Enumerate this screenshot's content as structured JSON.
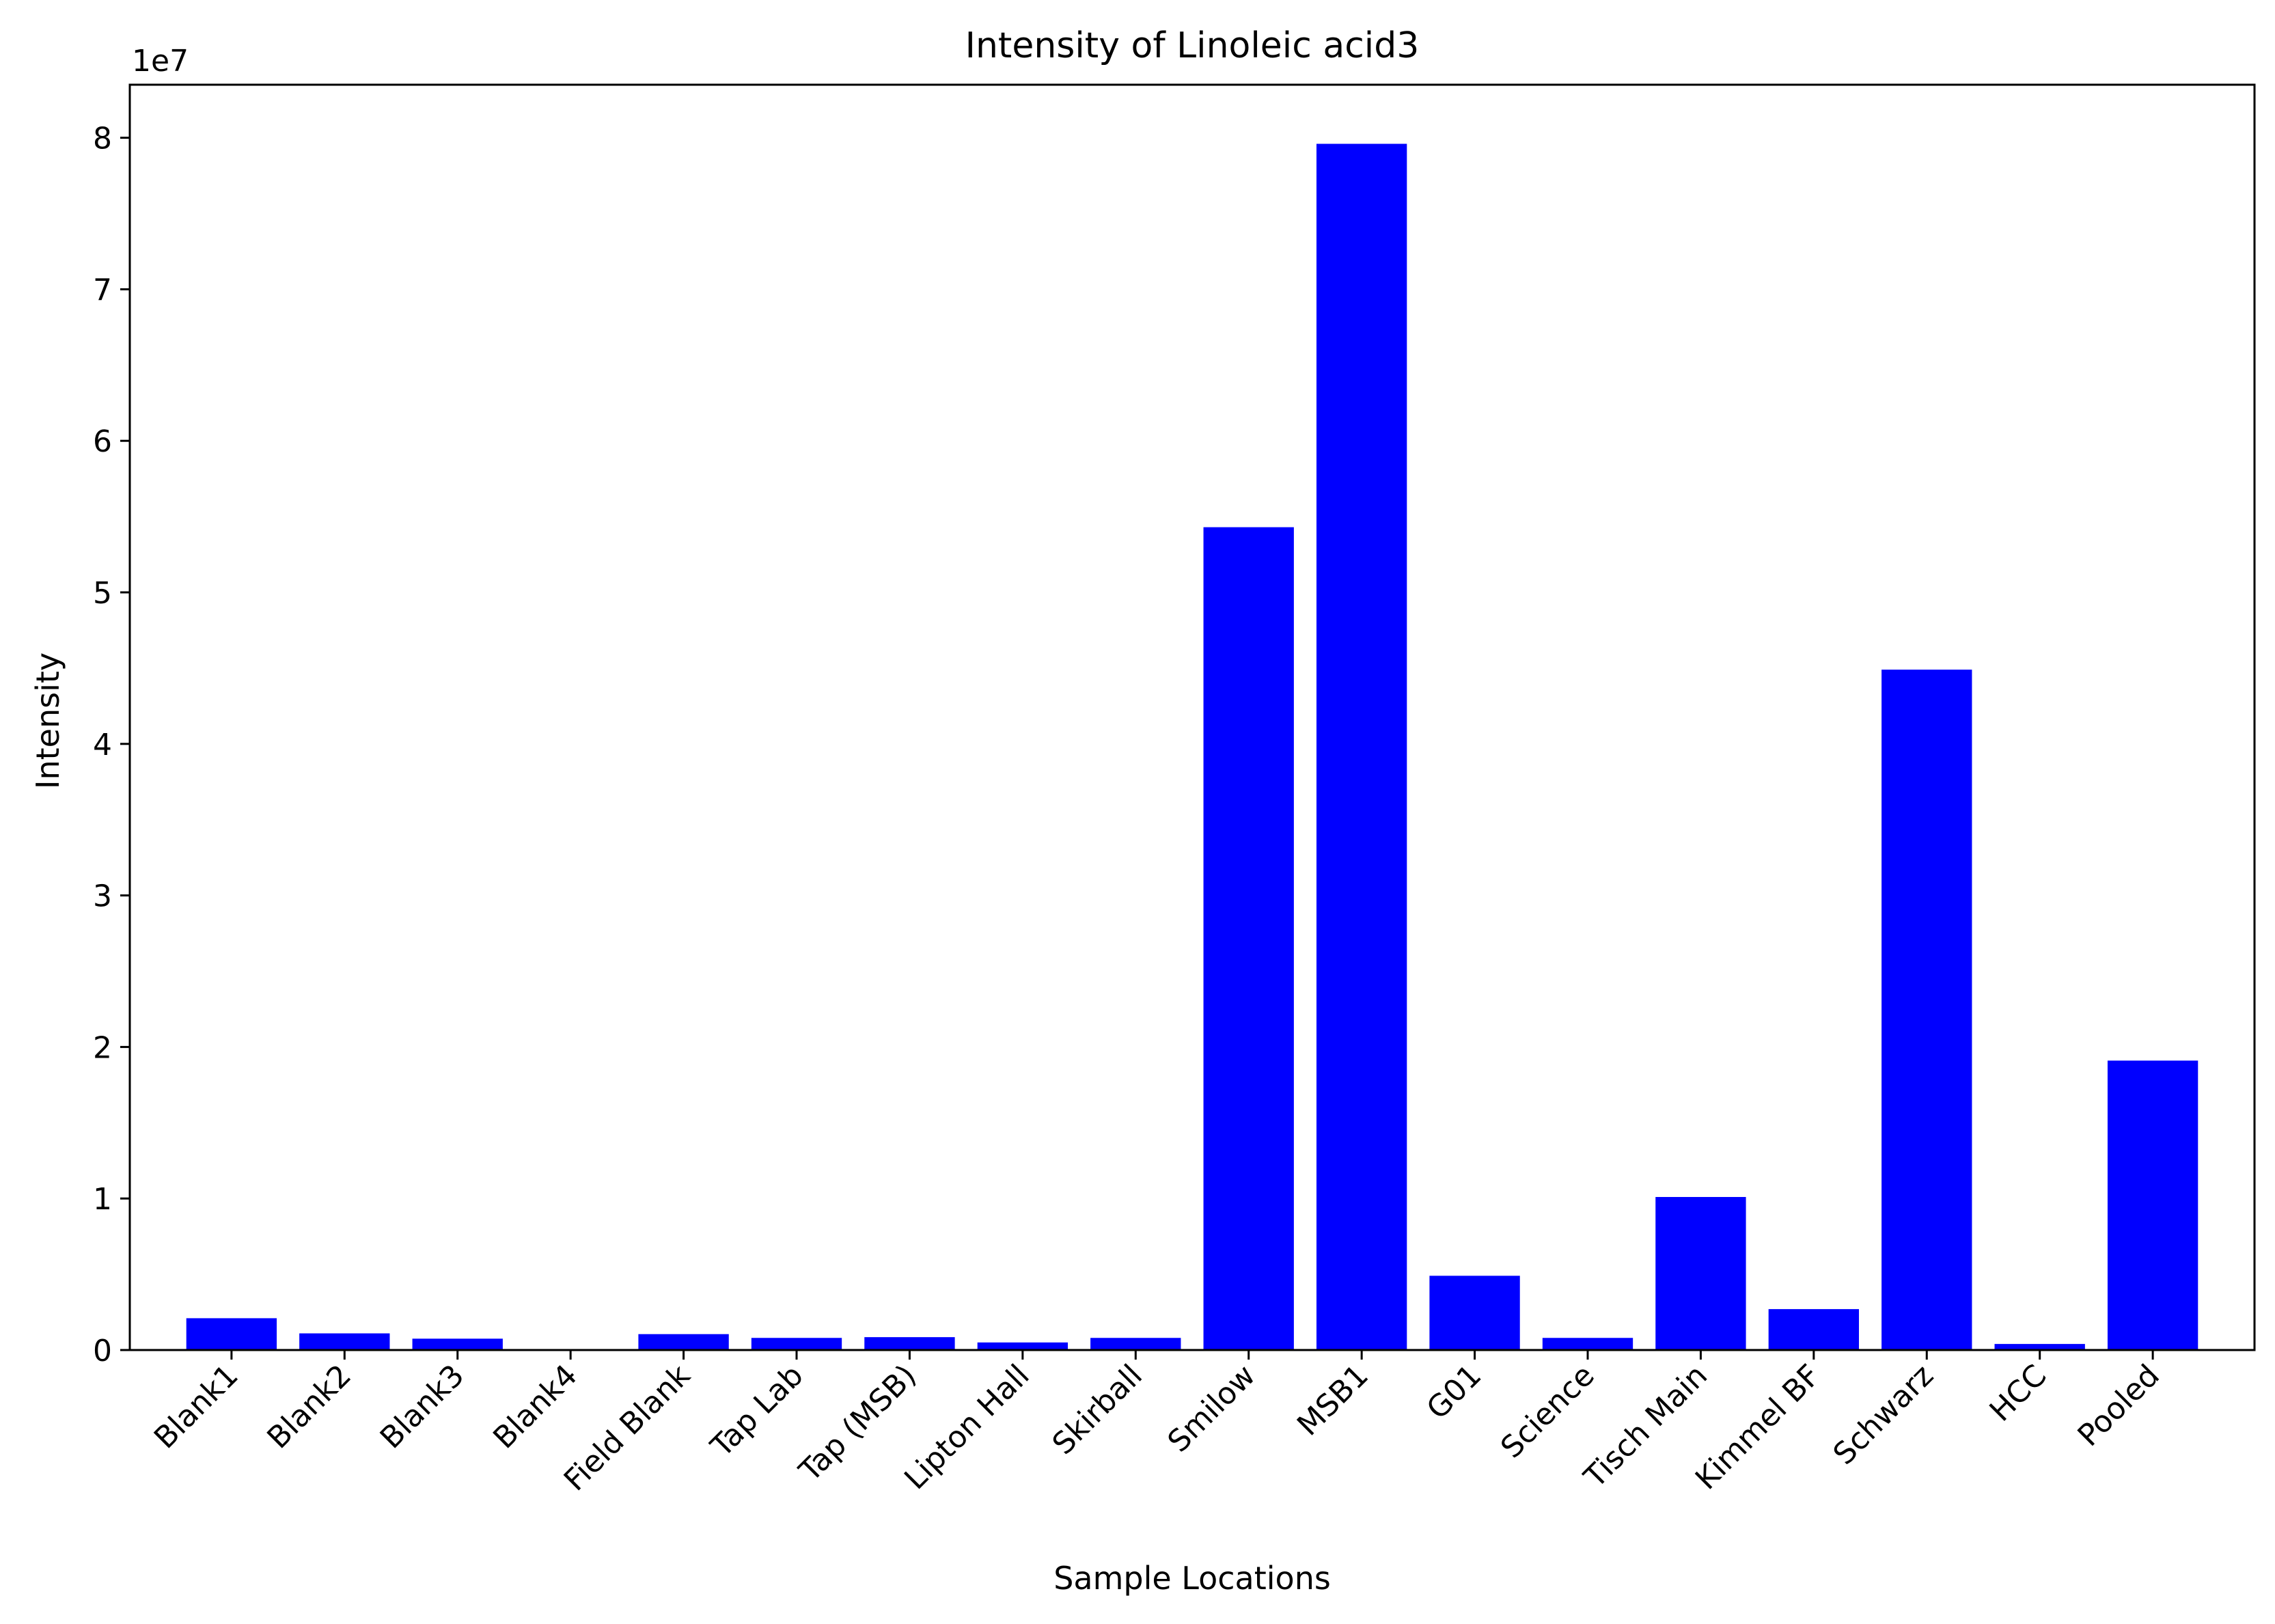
{
  "chart_data": {
    "type": "bar",
    "title": "Intensity of Linoleic acid3",
    "xlabel": "Sample Locations",
    "ylabel": "Intensity",
    "y_offset_label": "1e7",
    "y_scale": 10000000,
    "ylim": [
      0,
      83500000
    ],
    "yticks": [
      0,
      10000000,
      20000000,
      30000000,
      40000000,
      50000000,
      60000000,
      70000000,
      80000000
    ],
    "ytick_labels": [
      "0",
      "1",
      "2",
      "3",
      "4",
      "5",
      "6",
      "7",
      "8"
    ],
    "grid": false,
    "legend": "none",
    "bar_color": "#0000ff",
    "categories": [
      "Blank1",
      "Blank2",
      "Blank3",
      "Blank4",
      "Field Blank",
      "Tap Lab",
      "Tap (MSB)",
      "Lipton Hall",
      "Skirball",
      "Smilow",
      "MSB1",
      "G01",
      "Science",
      "Tisch Main",
      "Kimmel BF",
      "Schwarz",
      "HCC",
      "Pooled"
    ],
    "values": [
      2100000,
      1100000,
      750000,
      0,
      1050000,
      800000,
      850000,
      500000,
      800000,
      54300000,
      79600000,
      4900000,
      800000,
      10100000,
      2700000,
      44900000,
      400000,
      19100000
    ]
  }
}
